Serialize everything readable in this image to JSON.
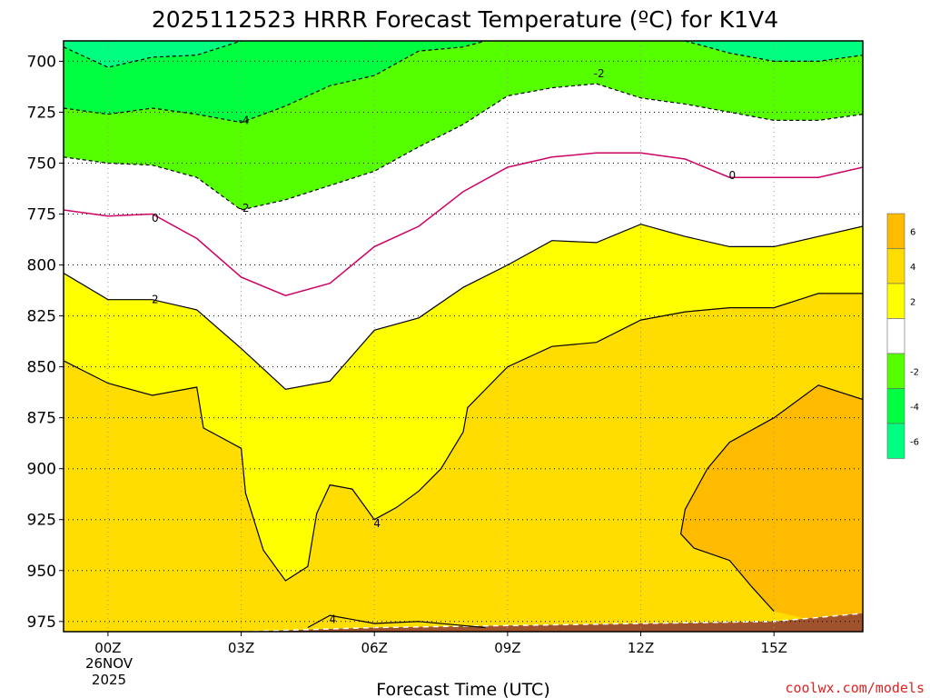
{
  "title": "2025112523 HRRR Forecast Temperature (ºC) for K1V4",
  "x_axis_title": "Forecast Time (UTC)",
  "credit": "coolwx.com/models",
  "date_line1": "26NOV",
  "date_line2": "2025",
  "colors": {
    "fill_m6": "#00ff80",
    "fill_m4": "#00ff40",
    "fill_m2": "#55ff00",
    "fill_0": "#ffffff",
    "fill_2": "#ffff00",
    "fill_4": "#ffdd00",
    "fill_6": "#ffbb00",
    "terrain": "#a0522d",
    "zero_line": "#cc0066",
    "contour": "#000000"
  },
  "chart_data": {
    "type": "contour",
    "title": "2025112523 HRRR Forecast Temperature (ºC) for K1V4",
    "xlabel": "Forecast Time (UTC)",
    "ylabel": "",
    "x_ticks": [
      "00Z",
      "03Z",
      "06Z",
      "09Z",
      "12Z",
      "15Z"
    ],
    "x_tick_hours": [
      0,
      3,
      6,
      9,
      12,
      15
    ],
    "xlim": [
      -1,
      17
    ],
    "y_ticks": [
      700,
      725,
      750,
      775,
      800,
      825,
      850,
      875,
      900,
      925,
      950,
      975
    ],
    "ylim": [
      980,
      690
    ],
    "y_scale": "reversed",
    "grid": true,
    "colorbar": {
      "labels": [
        "6",
        "4",
        "2",
        "-2",
        "-4",
        "-6"
      ],
      "values": [
        6,
        4,
        2,
        -2,
        -4,
        -6
      ],
      "placement": "right"
    },
    "contour_labels": [
      {
        "text": "-4",
        "x": 3.0,
        "y": 729
      },
      {
        "text": "-2",
        "x": 11.0,
        "y": 706
      },
      {
        "text": "-2",
        "x": 3.0,
        "y": 772
      },
      {
        "text": "0",
        "x": 1.0,
        "y": 777
      },
      {
        "text": "0",
        "x": 14.0,
        "y": 756
      },
      {
        "text": "2",
        "x": 1.0,
        "y": 817
      },
      {
        "text": "4",
        "x": 6.0,
        "y": 927
      },
      {
        "text": "4",
        "x": 5.0,
        "y": 974
      }
    ],
    "contours": [
      {
        "value": -4,
        "points": [
          [
            -1,
            693
          ],
          [
            0,
            703
          ],
          [
            1,
            698
          ],
          [
            2,
            697
          ],
          [
            3,
            690
          ]
        ]
      },
      {
        "value": -4,
        "points": [
          [
            13,
            690
          ],
          [
            14,
            696
          ],
          [
            15,
            700
          ],
          [
            16,
            700
          ],
          [
            17,
            697
          ]
        ]
      },
      {
        "value": -4,
        "points": [
          [
            -1,
            723
          ],
          [
            0,
            726
          ],
          [
            1,
            723
          ],
          [
            2,
            726
          ],
          [
            3,
            730
          ],
          [
            4,
            722
          ],
          [
            5,
            712
          ],
          [
            6,
            707
          ],
          [
            7,
            695
          ],
          [
            8,
            693
          ],
          [
            8.5,
            690
          ]
        ]
      },
      {
        "value": -2,
        "points": [
          [
            -1,
            747
          ],
          [
            0,
            750
          ],
          [
            1,
            751
          ],
          [
            2,
            757
          ],
          [
            3,
            773
          ],
          [
            4,
            768
          ],
          [
            5,
            761
          ],
          [
            6,
            754
          ],
          [
            7,
            742
          ],
          [
            8,
            731
          ],
          [
            9,
            717
          ],
          [
            10,
            713
          ],
          [
            11,
            711
          ],
          [
            12,
            718
          ],
          [
            13,
            721
          ],
          [
            14,
            725
          ],
          [
            15,
            729
          ],
          [
            16,
            729
          ],
          [
            17,
            726
          ]
        ]
      },
      {
        "value": 0,
        "points": [
          [
            -1,
            773
          ],
          [
            0,
            776
          ],
          [
            1,
            775
          ],
          [
            2,
            787
          ],
          [
            3,
            806
          ],
          [
            4,
            815
          ],
          [
            5,
            809
          ],
          [
            6,
            791
          ],
          [
            7,
            781
          ],
          [
            8,
            764
          ],
          [
            9,
            752
          ],
          [
            10,
            747
          ],
          [
            11,
            745
          ],
          [
            12,
            745
          ],
          [
            13,
            748
          ],
          [
            14,
            757
          ],
          [
            15,
            757
          ],
          [
            16,
            757
          ],
          [
            17,
            752
          ]
        ]
      },
      {
        "value": 2,
        "points": [
          [
            -1,
            804
          ],
          [
            0,
            817
          ],
          [
            1,
            817
          ],
          [
            2,
            822
          ],
          [
            3,
            841
          ],
          [
            4,
            861
          ],
          [
            5,
            857
          ],
          [
            6,
            832
          ],
          [
            7,
            826
          ],
          [
            8,
            811
          ],
          [
            9,
            800
          ],
          [
            10,
            788
          ],
          [
            11,
            789
          ],
          [
            12,
            780
          ],
          [
            13,
            786
          ],
          [
            14,
            791
          ],
          [
            15,
            791
          ],
          [
            16,
            786
          ],
          [
            17,
            781
          ]
        ]
      },
      {
        "value": 4,
        "points": [
          [
            -1,
            847
          ],
          [
            0,
            858
          ],
          [
            1,
            864
          ],
          [
            2,
            860
          ],
          [
            2.15,
            880
          ],
          [
            3,
            890
          ],
          [
            3.1,
            912
          ],
          [
            3.5,
            940
          ],
          [
            4,
            955
          ],
          [
            4.5,
            948
          ],
          [
            4.7,
            922
          ],
          [
            5,
            908
          ],
          [
            5.5,
            910
          ],
          [
            6,
            925
          ],
          [
            6.5,
            919
          ],
          [
            7,
            911
          ],
          [
            7.5,
            900
          ],
          [
            8,
            882
          ],
          [
            8.1,
            870
          ],
          [
            9,
            850
          ],
          [
            10,
            840
          ],
          [
            11,
            838
          ],
          [
            12,
            827
          ],
          [
            13,
            823
          ],
          [
            14,
            821
          ],
          [
            15,
            821
          ],
          [
            16,
            814
          ],
          [
            17,
            814
          ]
        ]
      },
      {
        "value": 4,
        "points": [
          [
            4.5,
            978
          ],
          [
            5,
            972
          ],
          [
            6,
            976
          ],
          [
            7,
            975
          ],
          [
            8,
            977
          ],
          [
            8.5,
            978
          ]
        ]
      },
      {
        "value": 6,
        "points": [
          [
            17,
            866
          ],
          [
            16,
            859
          ],
          [
            15,
            875
          ],
          [
            14,
            887
          ],
          [
            13.5,
            900
          ],
          [
            13,
            920
          ],
          [
            12.9,
            932
          ],
          [
            13.2,
            939
          ],
          [
            14,
            945
          ],
          [
            14.5,
            958
          ],
          [
            15,
            970
          ]
        ]
      }
    ],
    "terrain_surface_hpa": [
      [
        -1,
        983
      ],
      [
        0,
        982
      ],
      [
        3,
        980
      ],
      [
        6,
        978
      ],
      [
        9,
        977
      ],
      [
        12,
        976
      ],
      [
        15,
        975
      ],
      [
        17,
        971
      ]
    ]
  }
}
